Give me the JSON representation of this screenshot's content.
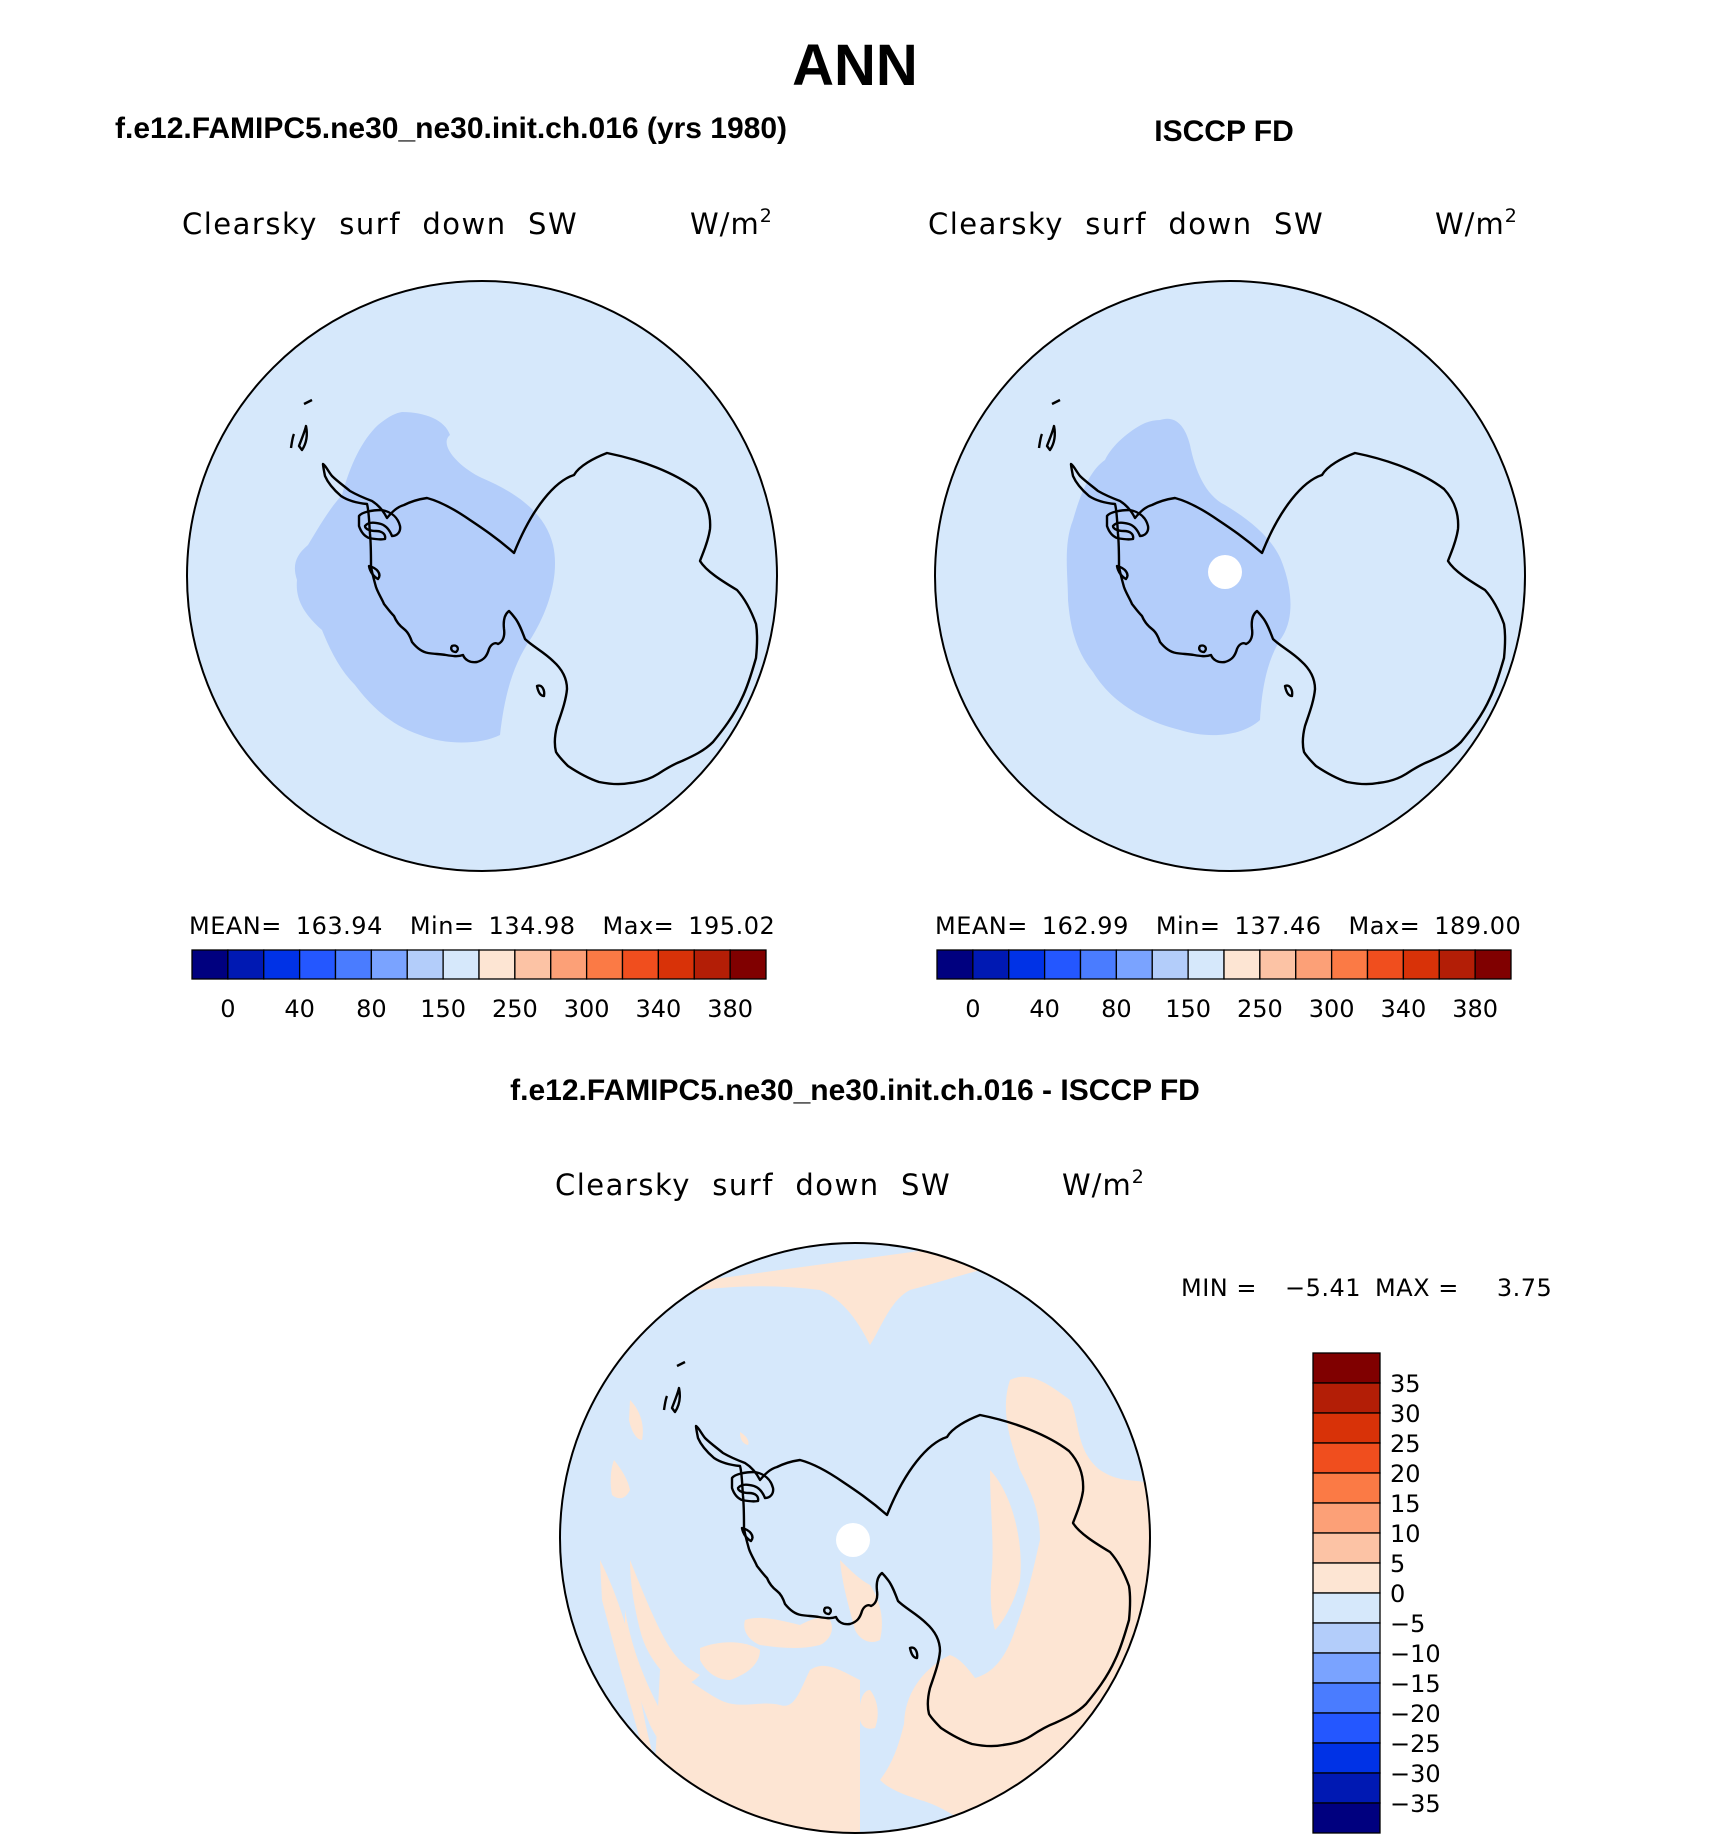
{
  "title": "ANN",
  "colors": {
    "ocean": "#d6e8fb",
    "low_band": "#b3cdfa",
    "diff_pos": "#fde5d3",
    "diff_neg": "#d6e8fb"
  },
  "panels": [
    {
      "title": "f.e12.FAMIPC5.ne30_ne30.init.ch.016 (yrs 1980)",
      "variable": "Clearsky  surf  down  SW",
      "units": "W/m",
      "units_sup": "2",
      "stats": {
        "mean_label": "MEAN=",
        "mean": "163.94",
        "min_label": "Min=",
        "min": "134.98",
        "max_label": "Max=",
        "max": "195.02"
      }
    },
    {
      "title": "ISCCP FD",
      "variable": "Clearsky  surf  down  SW",
      "units": "W/m",
      "units_sup": "2",
      "stats": {
        "mean_label": "MEAN=",
        "mean": "162.99",
        "min_label": "Min=",
        "min": "137.46",
        "max_label": "Max=",
        "max": "189.00"
      }
    },
    {
      "title": "f.e12.FAMIPC5.ne30_ne30.init.ch.016 - ISCCP FD",
      "variable": "Clearsky  surf  down  SW",
      "units": "W/m",
      "units_sup": "2",
      "stats": {
        "min_label": "MIN =",
        "min": "−5.41",
        "max_label": "MAX =",
        "max": "3.75"
      }
    }
  ],
  "colorbar_main": {
    "colors": [
      "#00007f",
      "#0019b3",
      "#0032e6",
      "#2457ff",
      "#4a7cff",
      "#7aa3ff",
      "#b3cdfa",
      "#d6e8fb",
      "#fde5d3",
      "#fcc3a5",
      "#fca077",
      "#fb7a45",
      "#f04e1e",
      "#d83208",
      "#b31e06",
      "#800000"
    ],
    "tick_labels": [
      "0",
      "40",
      "80",
      "150",
      "250",
      "300",
      "340",
      "380"
    ]
  },
  "colorbar_diff": {
    "colors": [
      "#800000",
      "#b31e06",
      "#d83208",
      "#f04e1e",
      "#fb7a45",
      "#fca077",
      "#fcc3a5",
      "#fde5d3",
      "#d6e8fb",
      "#b3cdfa",
      "#7aa3ff",
      "#4a7cff",
      "#2457ff",
      "#0032e6",
      "#0019b3",
      "#00007f"
    ],
    "tick_labels": [
      "35",
      "30",
      "25",
      "20",
      "15",
      "10",
      "5",
      "0",
      "−5",
      "−10",
      "−15",
      "−20",
      "−25",
      "−30",
      "−35"
    ]
  }
}
